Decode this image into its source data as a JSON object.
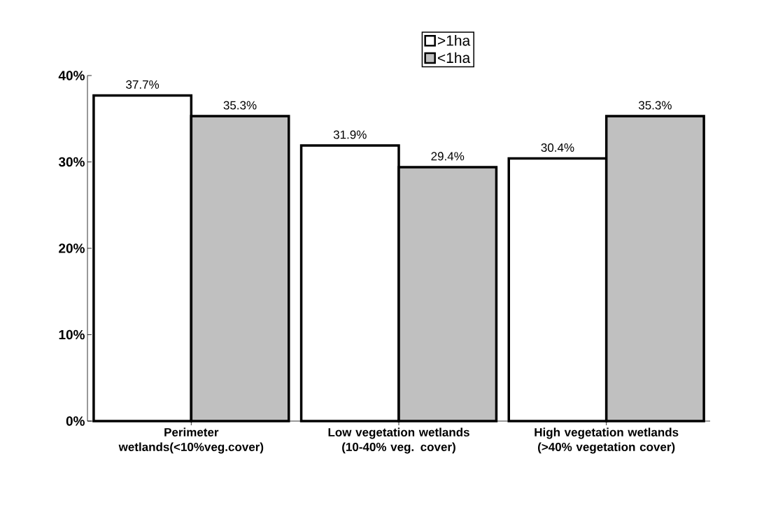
{
  "chart_data": {
    "type": "bar",
    "categories": [
      "Perimeter wetlands(<10%veg.cover)",
      "Low vegetation wetlands (10-40% veg. cover)",
      "High vegetation wetlands (>40% vegetation cover)"
    ],
    "series": [
      {
        "name": ">1ha",
        "color": "#ffffff",
        "values": [
          37.7,
          31.9,
          30.4
        ],
        "value_labels": [
          "37.7%",
          "31.9%",
          "30.4%"
        ]
      },
      {
        "name": "<1ha",
        "color": "#c0c0c0",
        "values": [
          35.3,
          29.4,
          35.3
        ],
        "value_labels": [
          "35.3%",
          "29.4%",
          "35.3%"
        ]
      }
    ],
    "ylim": [
      0,
      40
    ],
    "yticks": [
      {
        "value": 0,
        "label": "0%"
      },
      {
        "value": 10,
        "label": "10%"
      },
      {
        "value": 20,
        "label": "20%"
      },
      {
        "value": 30,
        "label": "30%"
      },
      {
        "value": 40,
        "label": "40%"
      }
    ],
    "legend": "top"
  }
}
